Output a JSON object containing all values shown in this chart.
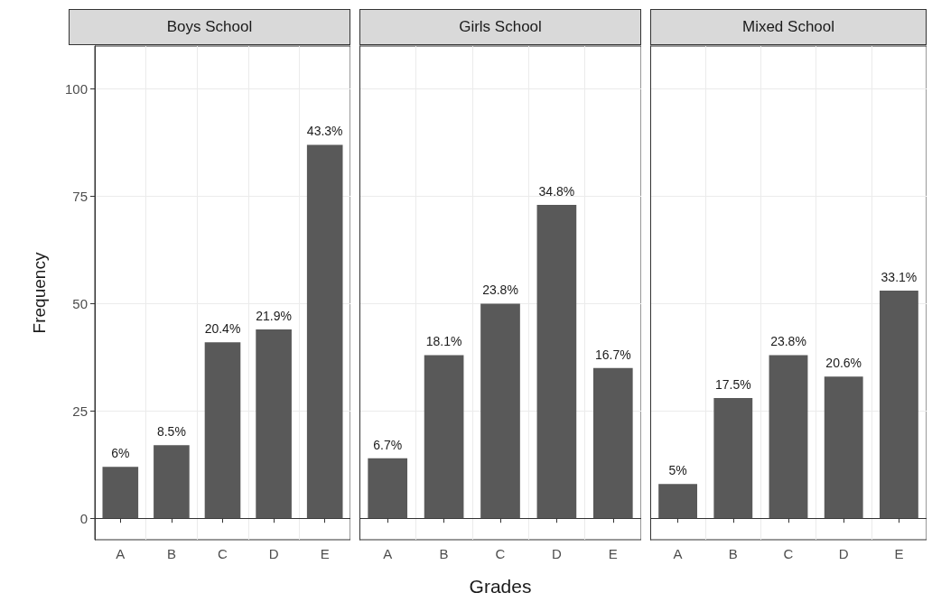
{
  "chart_data": [
    {
      "type": "bar",
      "title": "Boys School",
      "ylabel": "Frequency",
      "categories": [
        "A",
        "B",
        "C",
        "D",
        "E"
      ],
      "values": [
        12,
        17,
        41,
        44,
        87
      ],
      "color": "#595959",
      "ylim": [
        -5,
        110
      ],
      "yticks": [
        0,
        25,
        50,
        75,
        100
      ],
      "grid": true,
      "annotations": [
        {
          "text": "6%",
          "x": "A",
          "y": 12
        },
        {
          "text": "8.5%",
          "x": "B",
          "y": 17
        },
        {
          "text": "20.4%",
          "x": "C",
          "y": 41
        },
        {
          "text": "21.9%",
          "x": "D",
          "y": 44
        },
        {
          "text": "43.3%",
          "x": "E",
          "y": 87
        }
      ]
    },
    {
      "type": "bar",
      "title": "Girls School",
      "xlabel": "Grades",
      "categories": [
        "A",
        "B",
        "C",
        "D",
        "E"
      ],
      "values": [
        14,
        38,
        50,
        73,
        35
      ],
      "color": "#595959",
      "ylim": [
        -5,
        110
      ],
      "yticks": [
        0,
        25,
        50,
        75,
        100
      ],
      "grid": true,
      "tick_labels": "x",
      "annotations": [
        {
          "text": "6.7%",
          "x": "A",
          "y": 14
        },
        {
          "text": "18.1%",
          "x": "B",
          "y": 38
        },
        {
          "text": "23.8%",
          "x": "C",
          "y": 50
        },
        {
          "text": "34.8%",
          "x": "D",
          "y": 73
        },
        {
          "text": "16.7%",
          "x": "E",
          "y": 35
        }
      ]
    },
    {
      "type": "bar",
      "title": "Mixed School",
      "categories": [
        "A",
        "B",
        "C",
        "D",
        "E"
      ],
      "values": [
        8,
        28,
        38,
        33,
        53
      ],
      "color": "#595959",
      "ylim": [
        -5,
        110
      ],
      "yticks": [
        0,
        25,
        50,
        75,
        100
      ],
      "grid": true,
      "tick_labels": "x",
      "annotations": [
        {
          "text": "5%",
          "x": "A",
          "y": 8
        },
        {
          "text": "17.5%",
          "x": "B",
          "y": 28
        },
        {
          "text": "23.8%",
          "x": "C",
          "y": 38
        },
        {
          "text": "20.6%",
          "x": "D",
          "y": 33
        },
        {
          "text": "33.1%",
          "x": "E",
          "y": 53
        }
      ]
    }
  ]
}
